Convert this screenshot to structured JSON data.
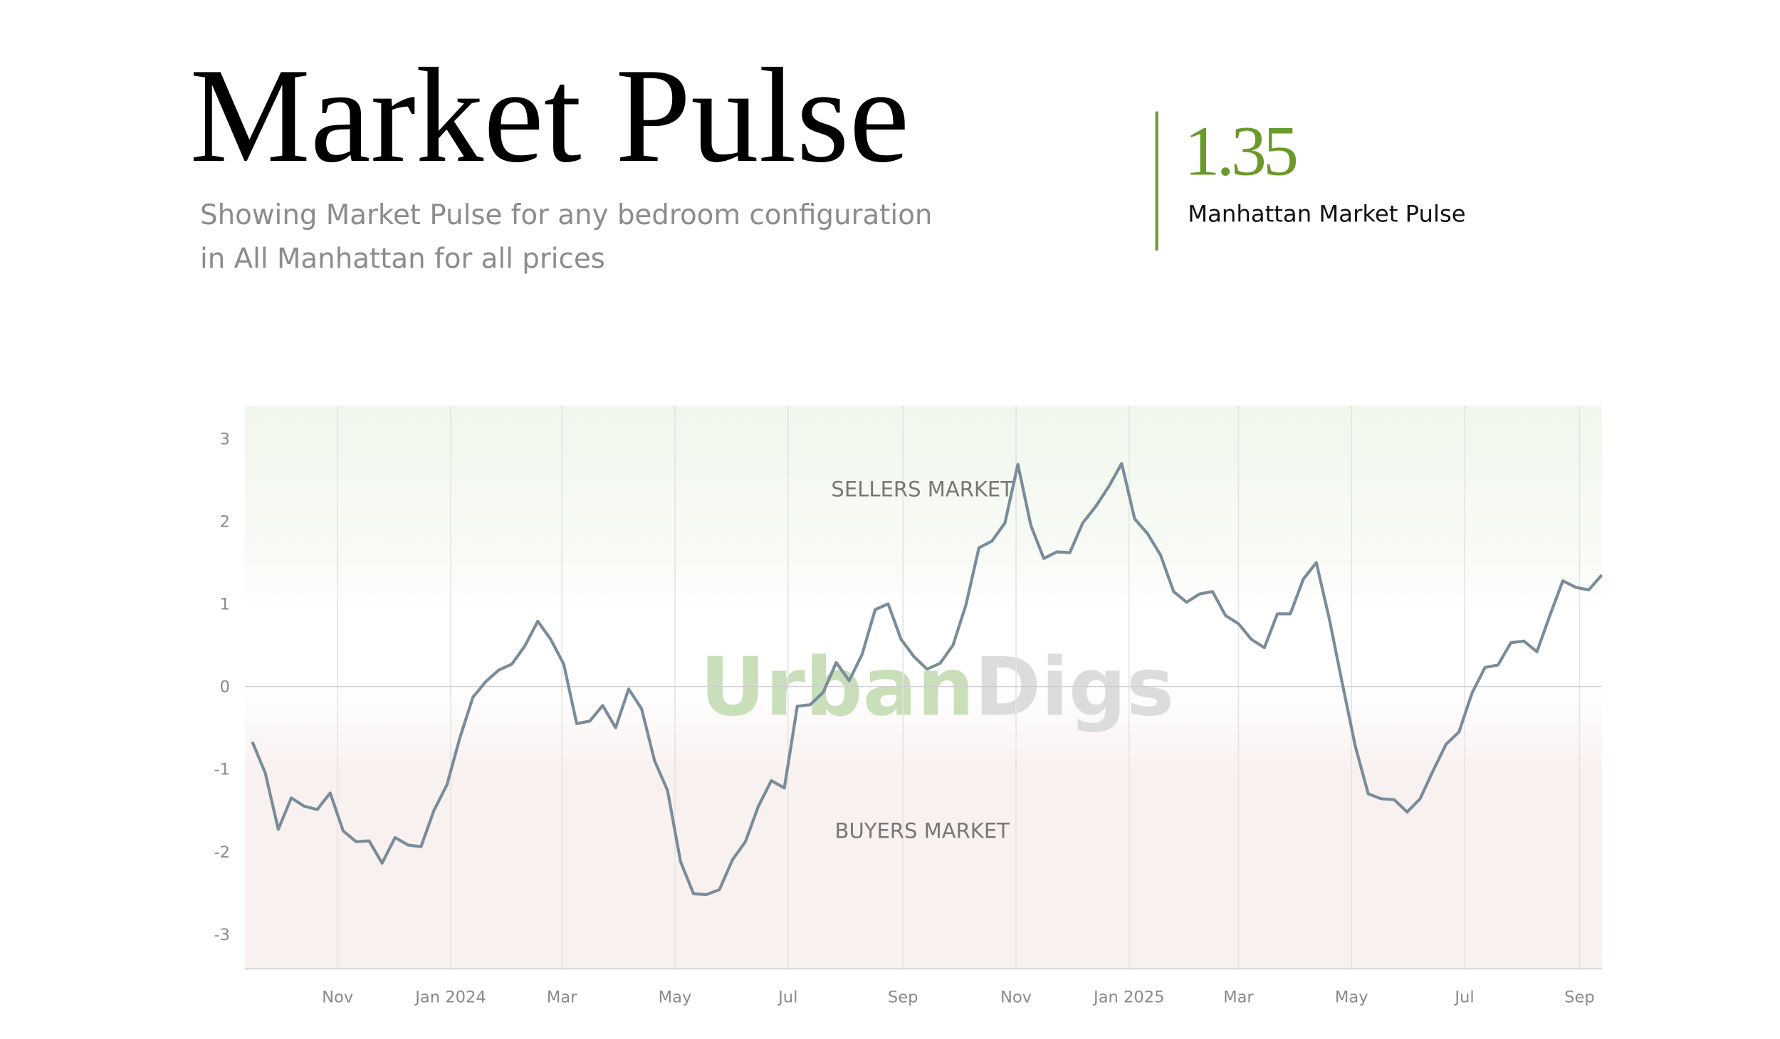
{
  "header": {
    "title": "Market Pulse",
    "subtitle_lines": [
      "Showing Market Pulse for any bedroom configuration",
      "in All Manhattan for all prices"
    ]
  },
  "stat": {
    "value": "1.35",
    "label": "Manhattan Market Pulse"
  },
  "chart_data": {
    "type": "line",
    "annotations": [
      "SELLERS MARKET",
      "BUYERS MARKET"
    ],
    "watermark": [
      "Urban",
      "Digs"
    ],
    "color": "#7a8c99",
    "x": [
      "2023-09-16",
      "2023-09-23",
      "2023-09-30",
      "2023-10-07",
      "2023-10-14",
      "2023-10-21",
      "2023-10-28",
      "2023-11-04",
      "2023-11-11",
      "2023-11-18",
      "2023-11-25",
      "2023-12-02",
      "2023-12-09",
      "2023-12-16",
      "2023-12-23",
      "2023-12-30",
      "2024-01-06",
      "2024-01-13",
      "2024-01-20",
      "2024-01-27",
      "2024-02-03",
      "2024-02-10",
      "2024-02-17",
      "2024-02-24",
      "2024-03-02",
      "2024-03-09",
      "2024-03-16",
      "2024-03-23",
      "2024-03-30",
      "2024-04-06",
      "2024-04-13",
      "2024-04-20",
      "2024-04-27",
      "2024-05-04",
      "2024-05-11",
      "2024-05-18",
      "2024-05-25",
      "2024-06-01",
      "2024-06-08",
      "2024-06-15",
      "2024-06-22",
      "2024-06-29",
      "2024-07-06",
      "2024-07-13",
      "2024-07-20",
      "2024-07-27",
      "2024-08-03",
      "2024-08-10",
      "2024-08-17",
      "2024-08-24",
      "2024-08-31",
      "2024-09-07",
      "2024-09-14",
      "2024-09-21",
      "2024-09-28",
      "2024-10-05",
      "2024-10-12",
      "2024-10-19",
      "2024-10-26",
      "2024-11-02",
      "2024-11-09",
      "2024-11-16",
      "2024-11-23",
      "2024-11-30",
      "2024-12-07",
      "2024-12-14",
      "2024-12-21",
      "2024-12-28",
      "2025-01-04",
      "2025-01-11",
      "2025-01-18",
      "2025-01-25",
      "2025-02-01",
      "2025-02-08",
      "2025-02-15",
      "2025-02-22",
      "2025-03-01",
      "2025-03-08",
      "2025-03-15",
      "2025-03-22",
      "2025-03-29",
      "2025-04-05",
      "2025-04-12",
      "2025-04-19",
      "2025-04-26",
      "2025-05-03",
      "2025-05-10",
      "2025-05-17",
      "2025-05-24",
      "2025-05-31",
      "2025-06-07",
      "2025-06-14",
      "2025-06-21",
      "2025-06-28",
      "2025-07-05",
      "2025-07-12",
      "2025-07-19",
      "2025-07-26",
      "2025-08-02",
      "2025-08-09",
      "2025-08-16",
      "2025-08-23",
      "2025-08-30",
      "2025-09-06",
      "2025-09-13"
    ],
    "values": [
      -0.67,
      -1.05,
      -1.73,
      -1.35,
      -1.45,
      -1.49,
      -1.29,
      -1.75,
      -1.88,
      -1.87,
      -2.14,
      -1.83,
      -1.92,
      -1.94,
      -1.5,
      -1.19,
      -0.62,
      -0.13,
      0.06,
      0.2,
      0.27,
      0.49,
      0.79,
      0.57,
      0.27,
      -0.45,
      -0.42,
      -0.23,
      -0.5,
      -0.03,
      -0.27,
      -0.9,
      -1.26,
      -2.12,
      -2.51,
      -2.52,
      -2.46,
      -2.1,
      -1.88,
      -1.45,
      -1.14,
      -1.23,
      -0.24,
      -0.22,
      -0.07,
      0.29,
      0.07,
      0.39,
      0.93,
      1.0,
      0.57,
      0.36,
      0.21,
      0.28,
      0.5,
      0.99,
      1.68,
      1.76,
      1.98,
      2.69,
      1.95,
      1.55,
      1.63,
      1.62,
      1.98,
      2.18,
      2.42,
      2.7,
      2.03,
      1.85,
      1.59,
      1.15,
      1.02,
      1.12,
      1.15,
      0.86,
      0.76,
      0.57,
      0.47,
      0.88,
      0.88,
      1.3,
      1.5,
      0.82,
      0.04,
      -0.72,
      -1.3,
      -1.36,
      -1.37,
      -1.52,
      -1.36,
      -1.02,
      -0.7,
      -0.55,
      -0.08,
      0.23,
      0.26,
      0.53,
      0.55,
      0.42,
      0.86,
      1.28,
      1.2,
      1.17,
      1.35
    ],
    "xlim": [
      "2023-09-12",
      "2025-09-13"
    ],
    "xticks": [
      {
        "value": "2023-11-01",
        "label": "Nov"
      },
      {
        "value": "2024-01-01",
        "label": "Jan 2024"
      },
      {
        "value": "2024-03-01",
        "label": "Mar"
      },
      {
        "value": "2024-05-01",
        "label": "May"
      },
      {
        "value": "2024-07-01",
        "label": "Jul"
      },
      {
        "value": "2024-09-01",
        "label": "Sep"
      },
      {
        "value": "2024-11-01",
        "label": "Nov"
      },
      {
        "value": "2025-01-01",
        "label": "Jan 2025"
      },
      {
        "value": "2025-03-01",
        "label": "Mar"
      },
      {
        "value": "2025-05-01",
        "label": "May"
      },
      {
        "value": "2025-07-01",
        "label": "Jul"
      },
      {
        "value": "2025-09-01",
        "label": "Sep"
      }
    ],
    "ylim": [
      -3.42,
      3.4
    ],
    "yticks": [
      -3,
      -2,
      -1,
      0,
      1,
      2,
      3
    ],
    "grid": true
  }
}
